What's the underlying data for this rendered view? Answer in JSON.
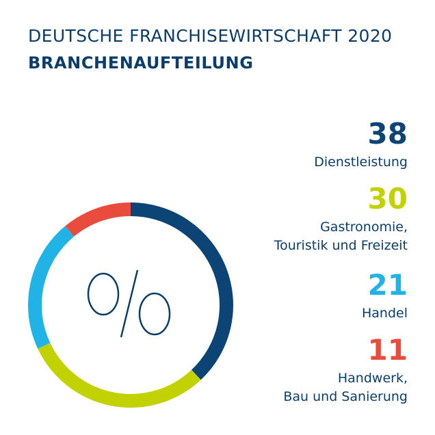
{
  "colors": {
    "text": "#0b3d6b",
    "navy": "#0c4575",
    "lime": "#c2d100",
    "cyan": "#22b3e6",
    "red": "#e94b3c"
  },
  "header": {
    "title": "DEUTSCHE FRANCHISEWIRTSCHAFT 2020",
    "subtitle": "BRANCHENAUFTEILUNG"
  },
  "chart_data": {
    "type": "pie",
    "variant": "donut",
    "center_label": "%",
    "start_angle_deg": 0,
    "direction": "clockwise",
    "slices": [
      {
        "value": 38,
        "label_lines": [
          "Dienstleistung"
        ],
        "color": "#0c4575"
      },
      {
        "value": 30,
        "label_lines": [
          "Gastronomie,",
          "Touristik und Freizeit"
        ],
        "color": "#c2d100"
      },
      {
        "value": 21,
        "label_lines": [
          "Handel"
        ],
        "color": "#22b3e6"
      },
      {
        "value": 11,
        "label_lines": [
          "Handwerk,",
          "Bau und Sanierung"
        ],
        "color": "#e94b3c"
      }
    ]
  }
}
